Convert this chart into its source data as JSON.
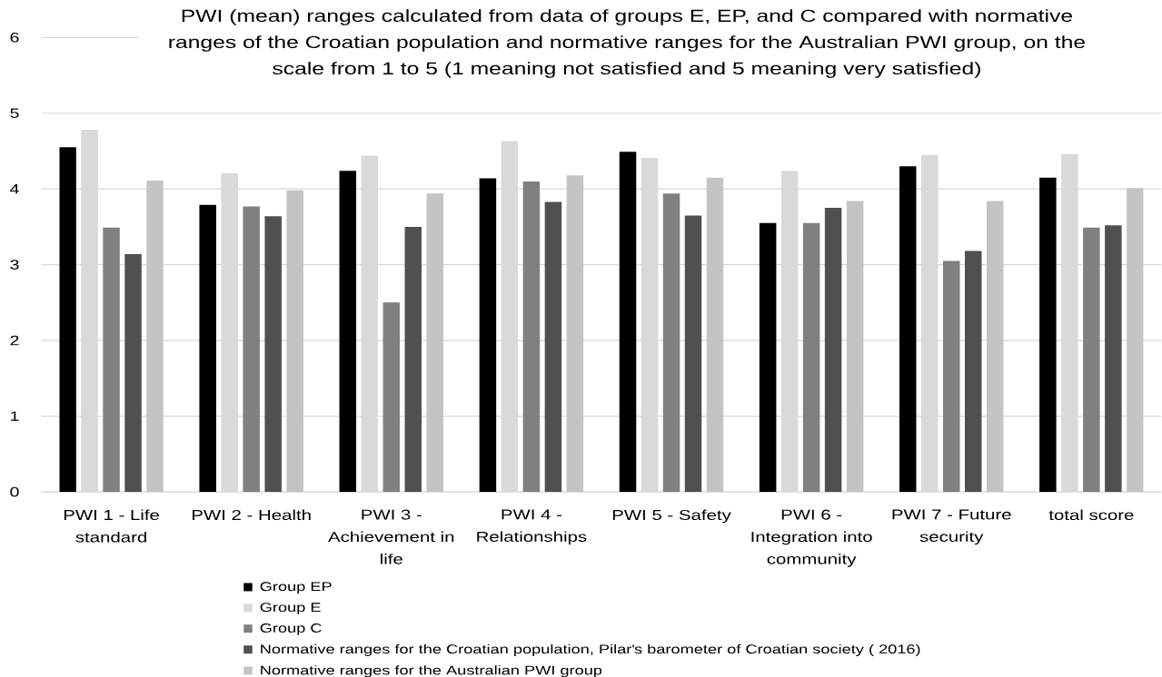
{
  "chart_data": {
    "type": "bar",
    "title": "PWI (mean) ranges calculated from data of groups E, EP, and C compared with normative ranges of the Croatian population and normative ranges for the Australian PWI group, on the scale from 1 to 5 (1 meaning not satisfied and 5 meaning very satisfied)",
    "categories": [
      "PWI 1 - Life standard",
      "PWI 2 - Health",
      "PWI 3 - Achievement in life",
      "PWI 4 - Relationships",
      "PWI 5 - Safety",
      "PWI 6 - Integration into community",
      "PWI 7 - Future security",
      "total score"
    ],
    "series": [
      {
        "name": "Group EP",
        "color": "#000000",
        "values": [
          4.55,
          3.79,
          4.24,
          4.14,
          4.49,
          3.55,
          4.3,
          4.15
        ]
      },
      {
        "name": "Group E",
        "color": "#d9d9d9",
        "values": [
          4.78,
          4.21,
          4.44,
          4.63,
          4.41,
          4.24,
          4.45,
          4.46
        ]
      },
      {
        "name": "Group C",
        "color": "#808080",
        "values": [
          3.49,
          3.77,
          2.5,
          4.1,
          3.94,
          3.55,
          3.05,
          3.49
        ]
      },
      {
        "name": "Normative ranges for the Croatian population, Pilar's barometer of Croatian society ( 2016)",
        "color": "#505050",
        "values": [
          3.14,
          3.64,
          3.5,
          3.83,
          3.65,
          3.75,
          3.18,
          3.52
        ]
      },
      {
        "name": "Normative ranges for the Australian PWI group",
        "color": "#c4c4c4",
        "values": [
          4.11,
          3.98,
          3.94,
          4.18,
          4.15,
          3.84,
          3.84,
          4.01
        ]
      }
    ],
    "ylim": [
      0,
      6
    ],
    "yticks": [
      0,
      1,
      2,
      3,
      4,
      5,
      6
    ],
    "grid": "y",
    "legend": "bottom"
  }
}
